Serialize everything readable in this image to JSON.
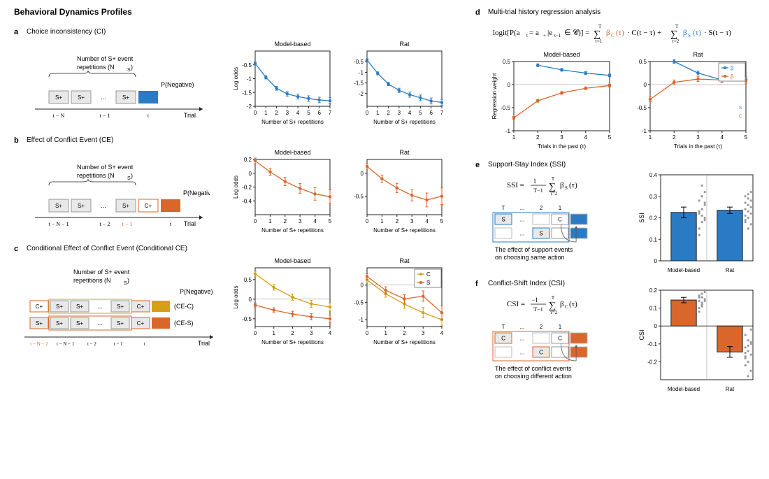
{
  "title": "Behavioral Dynamics Profiles",
  "colors": {
    "blue": "#2a7bc4",
    "orange": "#d9662b",
    "yellow": "#d4a017",
    "grid": "#d0d0d0",
    "axis": "#222",
    "box": "#e8e8e8",
    "boxstroke": "#999"
  },
  "a": {
    "label": "a",
    "title": "Choice inconsistency (CI)",
    "diag": {
      "caption": "Number of S+ event\nrepetitions (N",
      "sub": "S",
      "ticks": [
        "t − N",
        "t − 1",
        "t"
      ],
      "xlabel": "Trial",
      "pneg": "P(Negative)",
      "boxes": [
        "S+",
        "S+",
        "...",
        "S+"
      ],
      "endcolor": "#2a7bc4"
    },
    "charts": {
      "titles": [
        "Model-based",
        "Rat"
      ],
      "xlabel": "Number of S+ repetitions",
      "ylabel": "Log odds",
      "xlim": [
        0,
        7
      ],
      "ylim": [
        -2,
        0
      ],
      "xticks": [
        0,
        1,
        2,
        3,
        4,
        5,
        6,
        7
      ],
      "yticks": [
        -0.5,
        -1,
        -1.5,
        -2
      ],
      "model": {
        "x": [
          0,
          1,
          2,
          3,
          4,
          5,
          6,
          7
        ],
        "y": [
          -0.45,
          -0.95,
          -1.35,
          -1.55,
          -1.65,
          -1.72,
          -1.77,
          -1.8
        ],
        "err": [
          0.05,
          0.06,
          0.07,
          0.08,
          0.09,
          0.1,
          0.1,
          0.11
        ]
      },
      "rat": {
        "x": [
          0,
          1,
          2,
          3,
          4,
          5,
          6,
          7
        ],
        "y": [
          -0.42,
          -1.05,
          -1.55,
          -1.85,
          -2.05,
          -2.2,
          -2.35,
          -2.42
        ],
        "err": [
          0.05,
          0.07,
          0.08,
          0.1,
          0.12,
          0.13,
          0.14,
          0.15
        ]
      },
      "color": "#2a7bc4"
    }
  },
  "b": {
    "label": "b",
    "title": "Effect of Conflict Event (CE)",
    "diag": {
      "caption": "Number of S+ event\nrepetitions (N",
      "sub": "S",
      "ticks": [
        "t − N  − 1",
        "t − 2",
        "t − 1",
        "t"
      ],
      "xlabel": "Trial",
      "pneg": "P(Negative)",
      "boxes": [
        "S+",
        "S+",
        "...",
        "S+",
        "C+"
      ],
      "endcolor": "#d9662b"
    },
    "charts": {
      "titles": [
        "Model-based",
        "Rat"
      ],
      "xlabel": "Number of S+ repetitions",
      "ylabel": "Log odds",
      "xlim": [
        0,
        5
      ],
      "ylim": [
        -0.6,
        0.2
      ],
      "xticks": [
        0,
        1,
        2,
        3,
        4,
        5
      ],
      "yticks": [
        0.2,
        0,
        -0.2,
        -0.4
      ],
      "model": {
        "x": [
          0,
          1,
          2,
          3,
          4,
          5
        ],
        "y": [
          0.18,
          0.02,
          -0.12,
          -0.22,
          -0.3,
          -0.34
        ],
        "err": [
          0.04,
          0.05,
          0.06,
          0.07,
          0.09,
          0.1
        ]
      },
      "rat": {
        "x": [
          0,
          1,
          2,
          3,
          4,
          5
        ],
        "y": [
          0.15,
          -0.12,
          -0.32,
          -0.48,
          -0.58,
          -0.5
        ],
        "err": [
          0.06,
          0.08,
          0.1,
          0.12,
          0.15,
          0.18
        ]
      },
      "color": "#d9662b"
    }
  },
  "c": {
    "label": "c",
    "title": "Conditional Effect of Conflict Event (Conditional CE)",
    "diag": {
      "caption": "Number of S+ event\nrepetitions (N",
      "sub": "S",
      "pneg": "P(Negative)",
      "xlabel": "Trial",
      "row1": {
        "boxes": [
          "C+",
          "S+",
          "S+",
          "...",
          "S+",
          "C+"
        ],
        "label": "(CE-C)",
        "endcolor": "#d4a017"
      },
      "row2": {
        "boxes": [
          "S+",
          "S+",
          "S+",
          "...",
          "S+",
          "C+"
        ],
        "label": "(CE-S)",
        "endcolor": "#d9662b"
      },
      "ticks": [
        "t − N  − 2",
        "t − N  − 1",
        "t − 2",
        "t − 1",
        "t"
      ]
    },
    "charts": {
      "titles": [
        "Model-based",
        "Rat"
      ],
      "xlabel": "Number of S+ repetitions",
      "ylabel": "Log odds",
      "xlim": [
        0,
        4
      ],
      "ylim": [
        -1,
        1
      ],
      "xticks": [
        0,
        1,
        2,
        3,
        4
      ],
      "yticks": [
        0.5,
        0,
        -0.5
      ],
      "model": {
        "c": {
          "x": [
            0,
            1,
            2,
            3,
            4
          ],
          "y": [
            0.65,
            0.3,
            0.05,
            -0.12,
            -0.2
          ],
          "err": [
            0.06,
            0.07,
            0.08,
            0.09,
            0.1
          ],
          "color": "#d4a017"
        },
        "s": {
          "x": [
            0,
            1,
            2,
            3,
            4
          ],
          "y": [
            -0.15,
            -0.28,
            -0.38,
            -0.45,
            -0.5
          ],
          "err": [
            0.05,
            0.06,
            0.07,
            0.08,
            0.09
          ],
          "color": "#d9662b"
        }
      },
      "rat": {
        "c": {
          "x": [
            0,
            1,
            2,
            3,
            4
          ],
          "y": [
            0.15,
            -0.25,
            -0.55,
            -0.8,
            -1.0
          ],
          "err": [
            0.08,
            0.1,
            0.12,
            0.15,
            0.18
          ],
          "color": "#d4a017"
        },
        "s": {
          "x": [
            0,
            1,
            2,
            3,
            4
          ],
          "y": [
            0.25,
            -0.15,
            -0.4,
            -0.32,
            -0.8
          ],
          "err": [
            0.08,
            0.1,
            0.12,
            0.15,
            0.2
          ],
          "color": "#d9662b"
        }
      },
      "legend": [
        "C",
        "S"
      ]
    }
  },
  "d": {
    "label": "d",
    "title": "Multi-trial history regression analysis",
    "equation": "logit[P(aₜ = a₊|eₜ₋₁ ∈ 𝓒)] = Σ β_C(τ)·C(t−τ) + Σ β_S(τ)·S(t−τ)",
    "eq_parts": {
      "lhs": "logit[P(a",
      "sub1": "t",
      "mid1": " = a",
      "sub2": "+",
      "mid2": "|e",
      "sub3": "t−1",
      "mid3": " ∈ 𝓒)] = ",
      "sum1": "∑",
      "sumlim1t": "T",
      "sumlim1b": "τ=1",
      "bc": "β",
      "bcsub": "C",
      "bcarg": "(τ) · C(t − τ) + ",
      "sum2": "∑",
      "sumlim2t": "T",
      "sumlim2b": "τ=2",
      "bs": "β",
      "bssub": "S",
      "bsarg": "(τ) · S(t − τ)"
    },
    "charts": {
      "titles": [
        "Model-based",
        "Rat"
      ],
      "xlabel": "Trials in the past (τ)",
      "ylabel": "Regression weight",
      "xlim": [
        1,
        5
      ],
      "ylim": [
        -1,
        0.5
      ],
      "xticks": [
        1,
        2,
        3,
        4,
        5
      ],
      "yticks": [
        0.5,
        0,
        -0.5,
        -1
      ],
      "model": {
        "s": {
          "x": [
            2,
            3,
            4,
            5
          ],
          "y": [
            0.42,
            0.32,
            0.25,
            0.2
          ],
          "err": [
            0.03,
            0.03,
            0.03,
            0.03
          ],
          "color": "#2a7bc4"
        },
        "c": {
          "x": [
            1,
            2,
            3,
            4,
            5
          ],
          "y": [
            -0.72,
            -0.35,
            -0.18,
            -0.08,
            -0.02
          ],
          "err": [
            0.03,
            0.03,
            0.03,
            0.03,
            0.03
          ],
          "color": "#d9662b"
        }
      },
      "rat": {
        "s": {
          "x": [
            2,
            3,
            4,
            5
          ],
          "y": [
            0.5,
            0.25,
            0.1,
            0.12
          ],
          "err": [
            0.04,
            0.04,
            0.05,
            0.05
          ],
          "color": "#2a7bc4"
        },
        "c": {
          "x": [
            1,
            2,
            3,
            4,
            5
          ],
          "y": [
            -0.32,
            0.05,
            0.12,
            0.1,
            0.08
          ],
          "err": [
            0.05,
            0.05,
            0.05,
            0.05,
            0.05
          ],
          "color": "#d9662b"
        }
      },
      "legend": [
        "β_S",
        "β_C"
      ]
    }
  },
  "e": {
    "label": "e",
    "title": "Support-Stay Index (SSI)",
    "eq": "SSI = (1/(T−1)) Σ β_S(τ)",
    "diag": {
      "T": "T",
      "dots": "...",
      "labels": [
        "2",
        "1"
      ],
      "row1": [
        "S",
        "...",
        "",
        "C",
        ""
      ],
      "row2": [
        "",
        "...",
        "S",
        "",
        ""
      ],
      "caption": "The effect of support events\non choosing same action",
      "color": "#2a7bc4"
    },
    "chart": {
      "ylabel": "SSI",
      "ylim": [
        0,
        0.4
      ],
      "yticks": [
        0,
        0.1,
        0.2,
        0.3,
        0.4
      ],
      "cats": [
        "Model-based",
        "Rat"
      ],
      "bars": [
        {
          "val": 0.225,
          "err": 0.025,
          "color": "#2a7bc4",
          "pts": [
            0.15,
            0.18,
            0.2,
            0.22,
            0.24,
            0.26,
            0.28,
            0.3,
            0.32,
            0.12,
            0.35,
            0.19,
            0.23,
            0.21,
            0.27
          ]
        },
        {
          "val": 0.235,
          "err": 0.015,
          "color": "#2a7bc4",
          "pts": [
            0.18,
            0.2,
            0.22,
            0.24,
            0.26,
            0.28,
            0.3,
            0.15,
            0.32,
            0.21,
            0.23,
            0.25,
            0.27,
            0.29,
            0.17,
            0.19,
            0.31
          ]
        }
      ]
    }
  },
  "f": {
    "label": "f",
    "title": "Conflict-Shift Index (CSI)",
    "eq": "CSI = (−1/(T−1)) Σ β_C(τ)",
    "diag": {
      "T": "T",
      "dots": "...",
      "labels": [
        "2",
        "1"
      ],
      "row1": [
        "C",
        "...",
        "",
        "C",
        ""
      ],
      "row2": [
        "",
        "...",
        "C",
        "",
        ""
      ],
      "caption": "The effect of conflict events\non choosing different action",
      "color": "#d9662b"
    },
    "chart": {
      "ylabel": "CSI",
      "ylim": [
        -0.3,
        0.2
      ],
      "yticks": [
        -0.2,
        -0.1,
        0,
        0.1,
        0.2
      ],
      "cats": [
        "Model-based",
        "Rat"
      ],
      "bars": [
        {
          "val": 0.145,
          "err": 0.015,
          "color": "#d9662b",
          "pts": [
            0.1,
            0.12,
            0.14,
            0.16,
            0.18,
            0.2,
            0.08,
            0.13,
            0.15,
            0.17,
            0.11,
            0.19,
            0.14,
            0.16
          ]
        },
        {
          "val": -0.145,
          "err": 0.03,
          "color": "#d9662b",
          "pts": [
            -0.05,
            -0.08,
            -0.1,
            -0.12,
            -0.14,
            -0.16,
            -0.18,
            -0.2,
            -0.25,
            -0.22,
            -0.28,
            -0.02,
            -0.15,
            -0.11,
            -0.09,
            -0.17
          ]
        }
      ]
    }
  }
}
